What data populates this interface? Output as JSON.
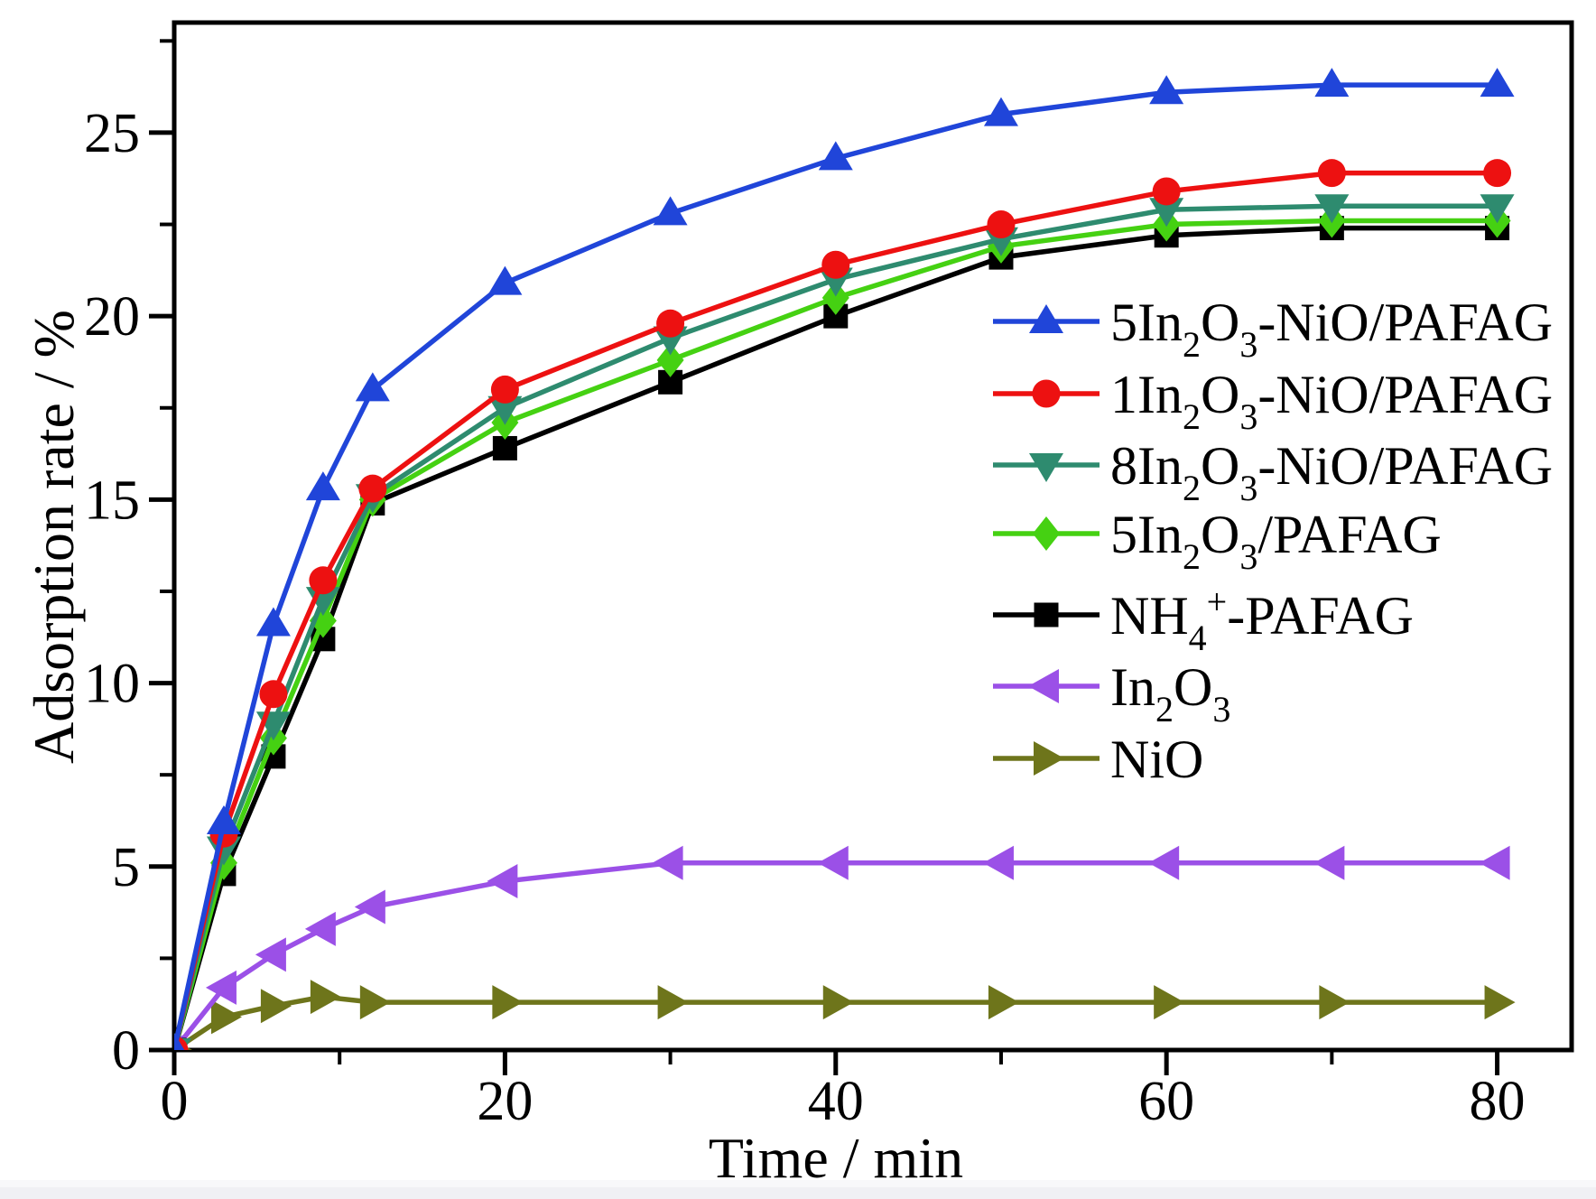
{
  "page": {
    "background": "#ffffff",
    "bottom_strip_color": "#f0f0f4"
  },
  "chart_data": {
    "type": "line",
    "title": "",
    "xlabel": "Time / min",
    "ylabel": "Adsorption rate / %",
    "xlim": [
      0,
      84.5
    ],
    "ylim": [
      0,
      28
    ],
    "grid": false,
    "legend_position": "inside-right",
    "x_major_ticks": [
      0,
      20,
      40,
      60,
      80
    ],
    "x_minor_ticks": [
      10,
      30,
      50,
      70
    ],
    "y_major_ticks": [
      0,
      5,
      10,
      15,
      20,
      25
    ],
    "y_minor_ticks": [
      2.5,
      7.5,
      12.5,
      17.5,
      22.5,
      27.5
    ],
    "axis_color": "#000000",
    "x": [
      0,
      3,
      6,
      9,
      12,
      20,
      30,
      40,
      50,
      60,
      70,
      80
    ],
    "series": [
      {
        "id": "5in2o3-nio-pafag",
        "label": "5In_2O_3-NiO/PAFAG",
        "color": "#2045D9",
        "marker": "triangle-up",
        "values": [
          0,
          6.2,
          11.6,
          15.3,
          18.0,
          20.9,
          22.8,
          24.3,
          25.5,
          26.1,
          26.3,
          26.3
        ]
      },
      {
        "id": "1in2o3-nio-pafag",
        "label": "1In_2O_3-NiO/PAFAG",
        "color": "#ED1111",
        "marker": "circle",
        "values": [
          0,
          5.9,
          9.7,
          12.8,
          15.3,
          18.0,
          19.8,
          21.4,
          22.5,
          23.4,
          23.9,
          23.9
        ]
      },
      {
        "id": "8in2o3-nio-pafag",
        "label": "8In_2O_3-NiO/PAFAG",
        "color": "#2E8B6F",
        "marker": "triangle-down",
        "values": [
          0,
          5.5,
          8.9,
          12.3,
          15.1,
          17.5,
          19.4,
          21.0,
          22.1,
          22.9,
          23.0,
          23.0
        ]
      },
      {
        "id": "5in2o3-pafag",
        "label": "5In_2O_3/PAFAG",
        "color": "#45D112",
        "marker": "diamond",
        "values": [
          0,
          5.1,
          8.5,
          11.7,
          15.0,
          17.1,
          18.8,
          20.5,
          21.9,
          22.5,
          22.6,
          22.6
        ]
      },
      {
        "id": "nh4-pafag",
        "label": "NH_4^+-PAFAG",
        "color": "#000000",
        "marker": "square",
        "values": [
          0,
          4.8,
          8.0,
          11.2,
          14.9,
          16.4,
          18.2,
          20.0,
          21.6,
          22.2,
          22.4,
          22.4
        ]
      },
      {
        "id": "in2o3",
        "label": "In_2O_3",
        "color": "#9B50E7",
        "marker": "triangle-left",
        "values": [
          0,
          1.7,
          2.6,
          3.3,
          3.9,
          4.6,
          5.1,
          5.1,
          5.1,
          5.1,
          5.1,
          5.1
        ]
      },
      {
        "id": "nio",
        "label": "NiO",
        "color": "#6E751B",
        "marker": "triangle-right",
        "values": [
          0,
          0.9,
          1.2,
          1.45,
          1.3,
          1.3,
          1.3,
          1.3,
          1.3,
          1.3,
          1.3,
          1.3
        ]
      }
    ]
  }
}
